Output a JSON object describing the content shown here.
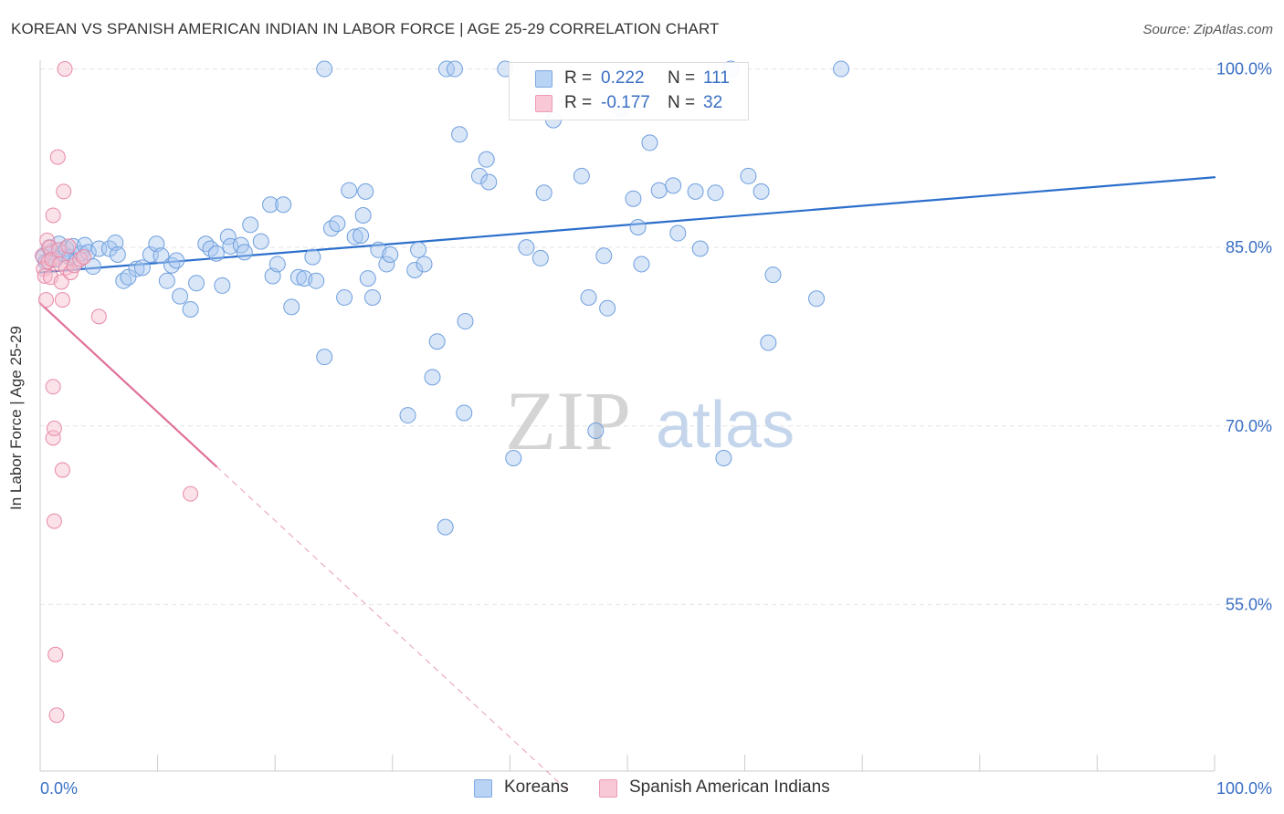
{
  "title": "KOREAN VS SPANISH AMERICAN INDIAN IN LABOR FORCE | AGE 25-29 CORRELATION CHART",
  "source": "Source: ZipAtlas.com",
  "watermark": {
    "zip": "ZIP",
    "atlas": "atlas"
  },
  "legend": {
    "rows": [
      {
        "r_label": "R =",
        "r_value": "0.222",
        "n_label": "N =",
        "n_value": "111"
      },
      {
        "r_label": "R =",
        "r_value": "-0.177",
        "n_label": "N =",
        "n_value": "32"
      }
    ]
  },
  "bottom_legend": [
    "Koreans",
    "Spanish American Indians"
  ],
  "colors": {
    "korean_fill": "#a8c8f0",
    "korean_stroke": "#6f9fde",
    "korean_line": "#2c6fcc",
    "spanish_fill": "#f6bccd",
    "spanish_stroke": "#e88aa8",
    "spanish_line": "#e0709a",
    "tick_label": "#3a6fc4",
    "grid": "#e4e4e4"
  },
  "chart_data": {
    "type": "scatter",
    "title": "KOREAN VS SPANISH AMERICAN INDIAN IN LABOR FORCE | AGE 25-29 CORRELATION CHART",
    "xlabel": "",
    "ylabel": "In Labor Force | Age 25-29",
    "xlim": [
      0,
      100
    ],
    "ylim": [
      41,
      101.5
    ],
    "x_tick_labels": [
      "0.0%",
      "100.0%"
    ],
    "y_ticks": [
      55,
      70,
      85,
      100
    ],
    "y_tick_labels": [
      "55.0%",
      "70.0%",
      "85.0%",
      "100.0%"
    ],
    "grid": true,
    "series": [
      {
        "name": "Koreans",
        "points": [
          [
            0.3,
            84.2
          ],
          [
            0.5,
            83.8
          ],
          [
            0.8,
            85.0
          ],
          [
            1.0,
            84.6
          ],
          [
            1.3,
            84.0
          ],
          [
            1.6,
            85.3
          ],
          [
            1.9,
            84.5
          ],
          [
            2.2,
            84.9
          ],
          [
            2.5,
            84.2
          ],
          [
            2.8,
            85.1
          ],
          [
            3.1,
            83.8
          ],
          [
            3.5,
            84.5
          ],
          [
            3.8,
            85.2
          ],
          [
            4.1,
            84.6
          ],
          [
            4.5,
            83.4
          ],
          [
            5.0,
            84.9
          ],
          [
            5.9,
            84.9
          ],
          [
            6.4,
            85.4
          ],
          [
            6.6,
            84.4
          ],
          [
            7.1,
            82.2
          ],
          [
            7.5,
            82.5
          ],
          [
            8.2,
            83.2
          ],
          [
            8.7,
            83.3
          ],
          [
            9.4,
            84.4
          ],
          [
            9.9,
            85.3
          ],
          [
            10.3,
            84.3
          ],
          [
            10.8,
            82.2
          ],
          [
            11.2,
            83.5
          ],
          [
            11.6,
            83.9
          ],
          [
            11.9,
            80.9
          ],
          [
            12.8,
            79.8
          ],
          [
            13.3,
            82.0
          ],
          [
            14.1,
            85.3
          ],
          [
            14.5,
            84.9
          ],
          [
            15.0,
            84.5
          ],
          [
            15.5,
            81.8
          ],
          [
            16.0,
            85.9
          ],
          [
            16.2,
            85.1
          ],
          [
            17.1,
            85.2
          ],
          [
            17.4,
            84.6
          ],
          [
            17.9,
            86.9
          ],
          [
            18.8,
            85.5
          ],
          [
            19.6,
            88.6
          ],
          [
            19.8,
            82.6
          ],
          [
            20.2,
            83.6
          ],
          [
            20.7,
            88.6
          ],
          [
            21.4,
            80.0
          ],
          [
            22.0,
            82.5
          ],
          [
            22.5,
            82.4
          ],
          [
            23.2,
            84.2
          ],
          [
            23.5,
            82.2
          ],
          [
            24.2,
            75.8
          ],
          [
            24.2,
            100.0
          ],
          [
            24.8,
            86.6
          ],
          [
            25.3,
            87.0
          ],
          [
            25.9,
            80.8
          ],
          [
            26.3,
            89.8
          ],
          [
            26.8,
            85.9
          ],
          [
            27.3,
            86.0
          ],
          [
            27.5,
            87.7
          ],
          [
            27.7,
            89.7
          ],
          [
            27.9,
            82.4
          ],
          [
            28.3,
            80.8
          ],
          [
            28.8,
            84.8
          ],
          [
            29.5,
            83.6
          ],
          [
            29.8,
            84.4
          ],
          [
            31.3,
            70.9
          ],
          [
            31.9,
            83.1
          ],
          [
            32.2,
            84.8
          ],
          [
            32.7,
            83.6
          ],
          [
            33.4,
            74.1
          ],
          [
            33.8,
            77.1
          ],
          [
            34.5,
            61.5
          ],
          [
            34.6,
            100.0
          ],
          [
            35.3,
            100.0
          ],
          [
            35.7,
            94.5
          ],
          [
            36.1,
            71.1
          ],
          [
            36.2,
            78.8
          ],
          [
            37.4,
            91.0
          ],
          [
            38.0,
            92.4
          ],
          [
            38.2,
            90.5
          ],
          [
            39.6,
            100.0
          ],
          [
            40.3,
            67.3
          ],
          [
            41.4,
            85.0
          ],
          [
            42.6,
            84.1
          ],
          [
            42.9,
            89.6
          ],
          [
            43.7,
            95.7
          ],
          [
            46.1,
            91.0
          ],
          [
            46.7,
            80.8
          ],
          [
            47.3,
            69.6
          ],
          [
            48.0,
            84.3
          ],
          [
            48.3,
            79.9
          ],
          [
            49.5,
            96.7
          ],
          [
            50.5,
            89.1
          ],
          [
            50.9,
            86.7
          ],
          [
            51.2,
            83.6
          ],
          [
            51.9,
            93.8
          ],
          [
            52.7,
            89.8
          ],
          [
            53.9,
            90.2
          ],
          [
            54.3,
            86.2
          ],
          [
            55.8,
            89.7
          ],
          [
            56.2,
            84.9
          ],
          [
            57.5,
            89.6
          ],
          [
            58.2,
            67.3
          ],
          [
            58.8,
            100.0
          ],
          [
            60.3,
            91.0
          ],
          [
            61.4,
            89.7
          ],
          [
            62.0,
            77.0
          ],
          [
            62.4,
            82.7
          ],
          [
            66.1,
            80.7
          ],
          [
            68.2,
            100.0
          ]
        ]
      },
      {
        "name": "Spanish American Indians",
        "points": [
          [
            0.2,
            84.3
          ],
          [
            0.3,
            83.2
          ],
          [
            0.4,
            82.6
          ],
          [
            0.5,
            80.6
          ],
          [
            0.6,
            85.6
          ],
          [
            0.7,
            83.8
          ],
          [
            0.8,
            85.0
          ],
          [
            0.9,
            82.5
          ],
          [
            1.0,
            84.0
          ],
          [
            1.1,
            73.3
          ],
          [
            1.1,
            69.0
          ],
          [
            1.1,
            87.7
          ],
          [
            1.2,
            69.8
          ],
          [
            1.2,
            62.0
          ],
          [
            1.3,
            50.8
          ],
          [
            1.4,
            45.7
          ],
          [
            1.5,
            92.6
          ],
          [
            1.6,
            84.8
          ],
          [
            1.7,
            83.6
          ],
          [
            1.8,
            82.1
          ],
          [
            1.9,
            80.6
          ],
          [
            1.9,
            66.3
          ],
          [
            2.0,
            89.7
          ],
          [
            2.1,
            100.0
          ],
          [
            2.2,
            83.3
          ],
          [
            2.4,
            85.1
          ],
          [
            2.6,
            82.9
          ],
          [
            2.9,
            83.5
          ],
          [
            3.4,
            84.0
          ],
          [
            3.7,
            84.2
          ],
          [
            5.0,
            79.2
          ],
          [
            12.8,
            64.3
          ]
        ]
      }
    ],
    "trend_lines": [
      {
        "series": "Koreans",
        "from": [
          0,
          82.9
        ],
        "to": [
          100,
          90.9
        ],
        "style": "solid"
      },
      {
        "series": "Spanish American Indians",
        "from": [
          0,
          80.3
        ],
        "to": [
          15,
          66.6
        ],
        "style": "solid"
      },
      {
        "series": "Spanish American Indians",
        "from": [
          15,
          66.6
        ],
        "to": [
          45.1,
          39.2
        ],
        "style": "dashed"
      }
    ]
  }
}
